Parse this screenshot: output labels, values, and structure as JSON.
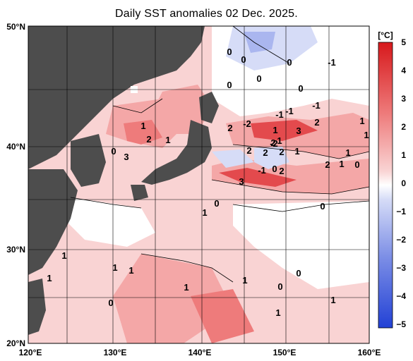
{
  "title": "Daily SST anomalies 02 Dec. 2025.",
  "lat_labels": [
    "50°N",
    "40°N",
    "30°N",
    "20°N"
  ],
  "lon_labels": [
    "120°E",
    "130°E",
    "140°E",
    "150°E",
    "160°E"
  ],
  "colorbar": {
    "unit": "[°C]",
    "ticks": [
      "5",
      "4",
      "3",
      "2",
      "1",
      "0",
      "−1",
      "−2",
      "−3",
      "−4",
      "−5"
    ],
    "warm_colors": [
      "#d7191c",
      "#e34a4d",
      "#ee7b7b",
      "#f4a7a7",
      "#f9d3d3",
      "#ffffff"
    ],
    "cool_colors": [
      "#ffffff",
      "#d6dcf7",
      "#aab6ef",
      "#7d8fe6",
      "#4f68de",
      "#2241d5"
    ]
  },
  "colors": {
    "land": "#4d4d4d",
    "ocean_neutral": "#ffffff",
    "contour": "#000000",
    "grid": "#000000"
  },
  "contour_labels": [
    {
      "text": "0"
    },
    {
      "text": "0"
    },
    {
      "text": "0"
    },
    {
      "text": "0"
    },
    {
      "text": "-1"
    },
    {
      "text": "0"
    },
    {
      "text": "0"
    },
    {
      "text": "-1"
    },
    {
      "text": "-1"
    },
    {
      "text": "-1"
    },
    {
      "text": "1"
    },
    {
      "text": "2"
    },
    {
      "text": "1"
    },
    {
      "text": "2"
    },
    {
      "text": "-2"
    },
    {
      "text": "1"
    },
    {
      "text": "3"
    },
    {
      "text": "2"
    },
    {
      "text": "1"
    },
    {
      "text": "1"
    },
    {
      "text": "2"
    },
    {
      "text": "1"
    },
    {
      "text": "0"
    },
    {
      "text": "3"
    },
    {
      "text": "2"
    },
    {
      "text": "2"
    },
    {
      "text": "-2"
    },
    {
      "text": "2"
    },
    {
      "text": "1"
    },
    {
      "text": "1"
    },
    {
      "text": "2"
    },
    {
      "text": "1"
    },
    {
      "text": "0"
    },
    {
      "text": "-1"
    },
    {
      "text": "0"
    },
    {
      "text": "2"
    },
    {
      "text": "3"
    },
    {
      "text": "0"
    },
    {
      "text": "1"
    },
    {
      "text": "0"
    },
    {
      "text": "1"
    },
    {
      "text": "1"
    },
    {
      "text": "1"
    },
    {
      "text": "1"
    },
    {
      "text": "1"
    },
    {
      "text": "0"
    },
    {
      "text": "0"
    },
    {
      "text": "1"
    },
    {
      "text": "1"
    },
    {
      "text": "1"
    },
    {
      "text": "0"
    }
  ]
}
